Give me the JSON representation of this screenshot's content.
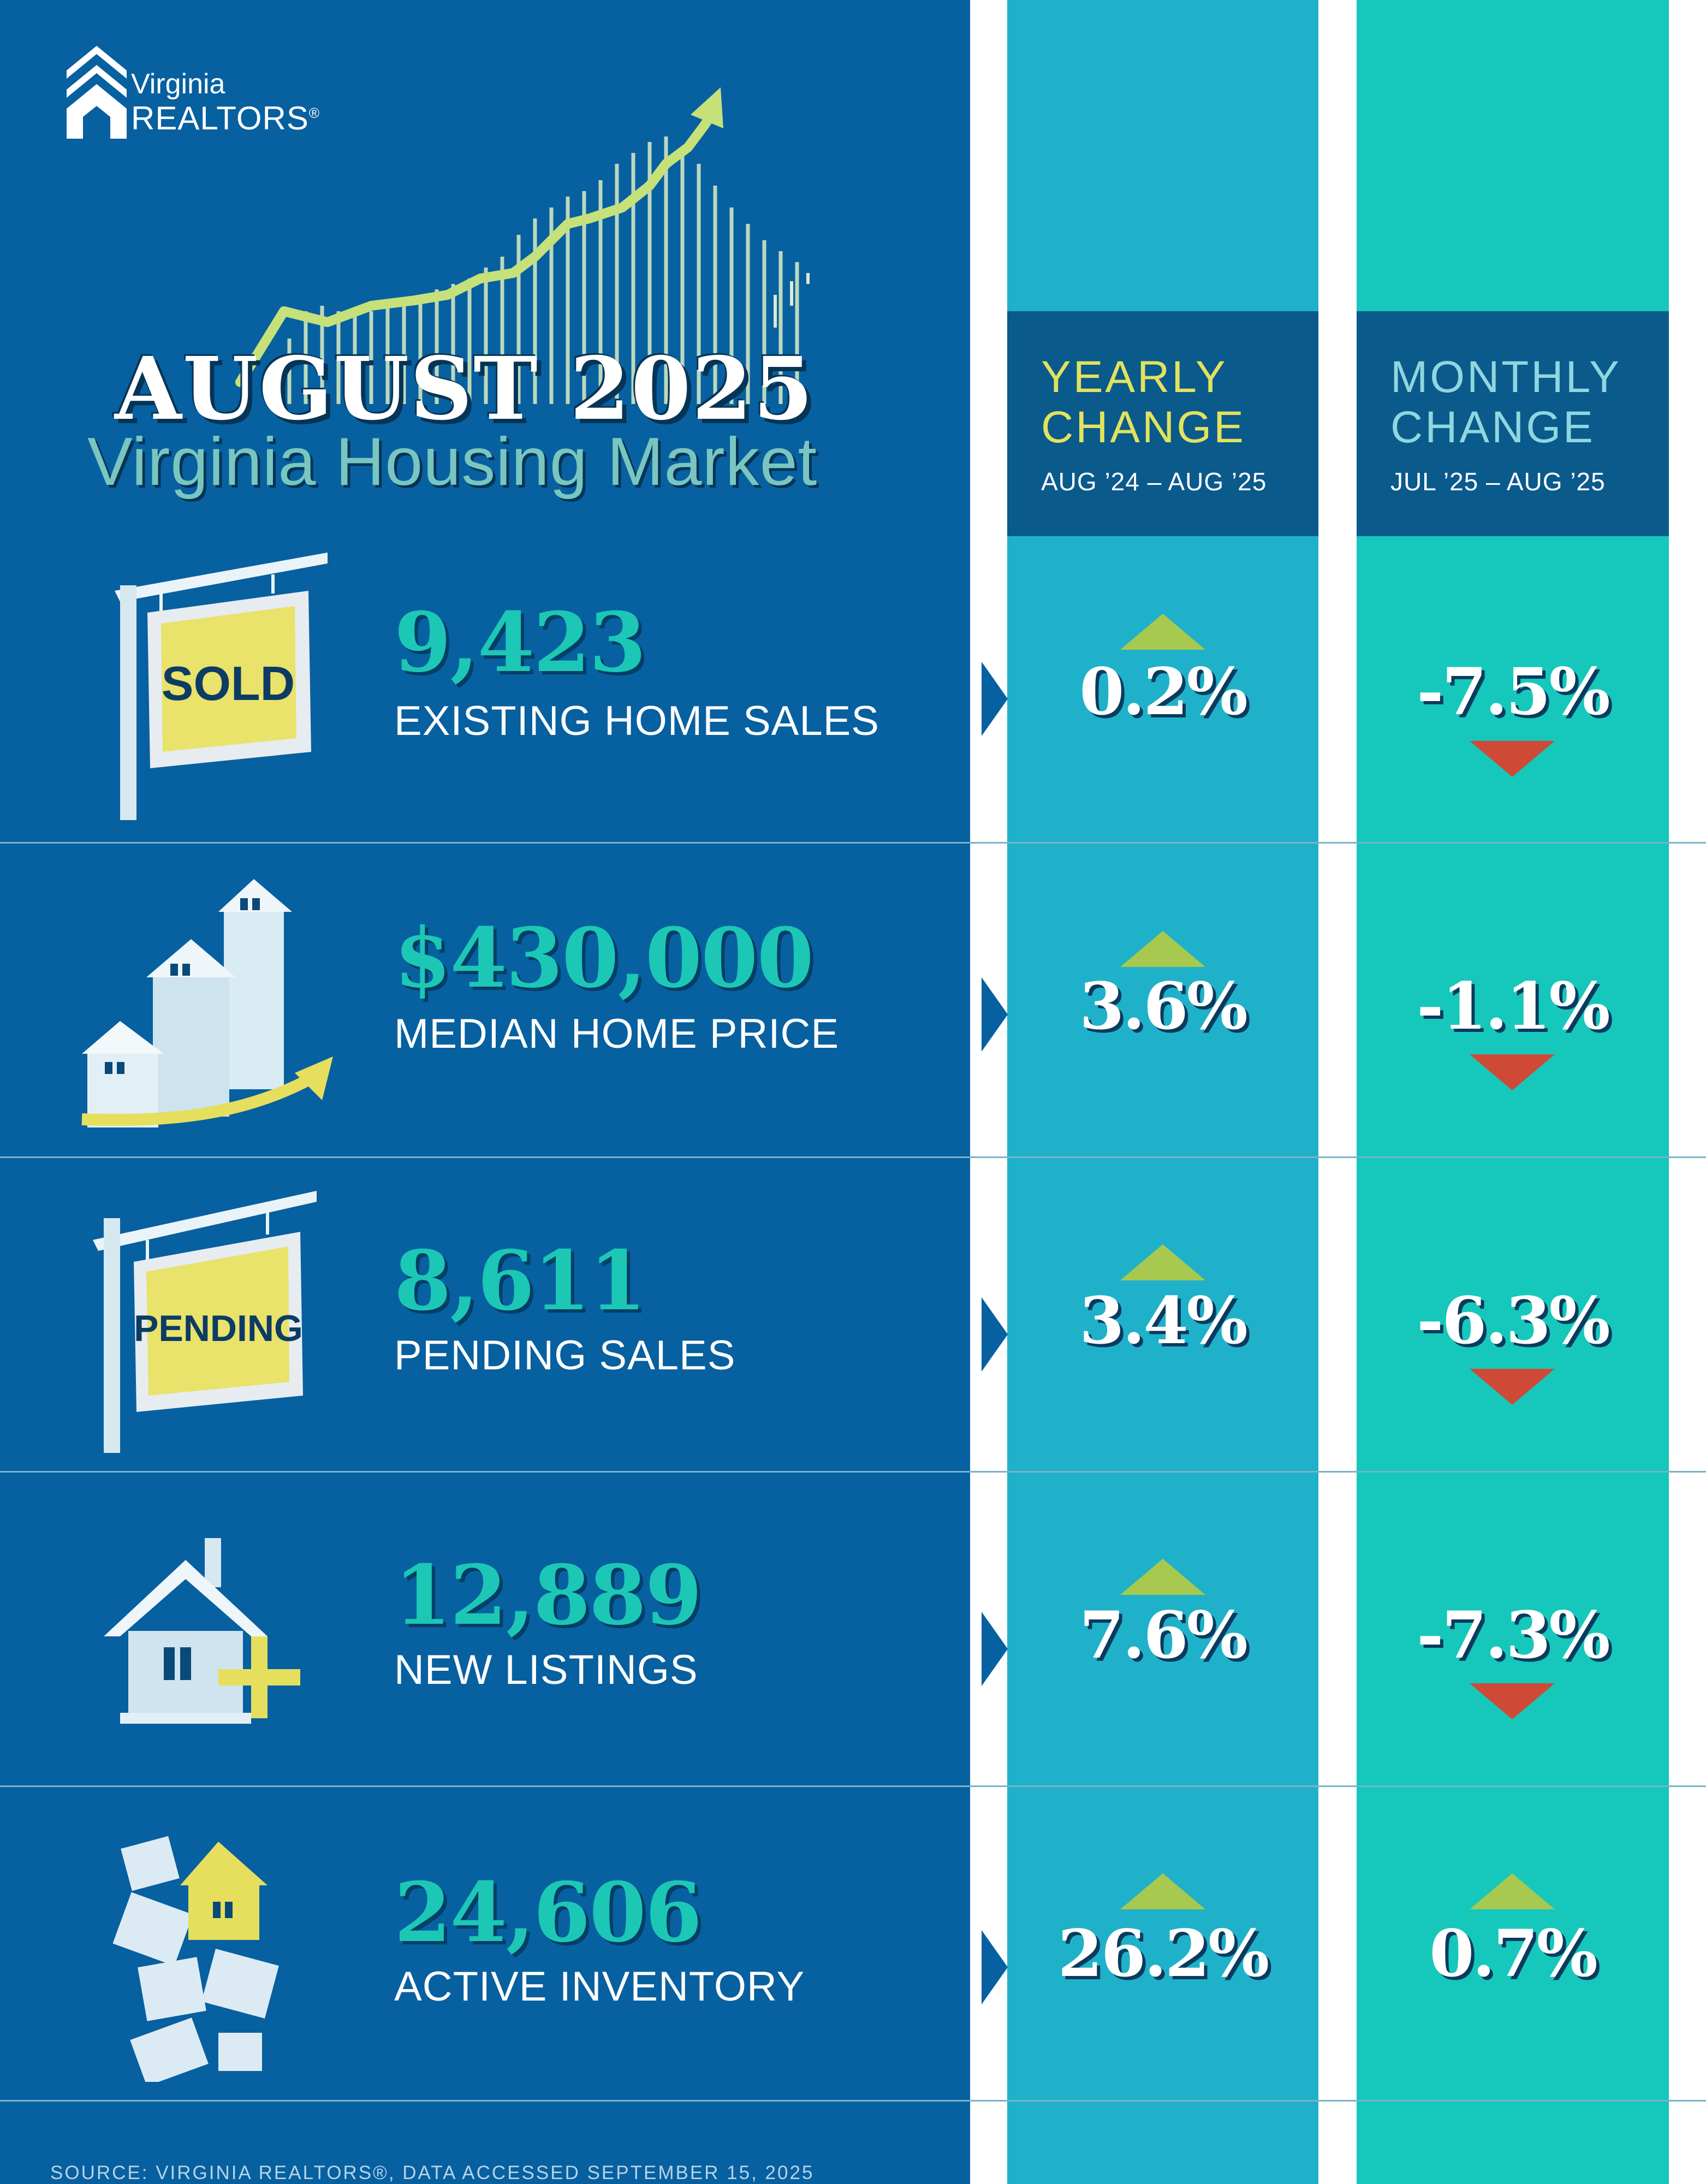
{
  "logo": {
    "line1": "Virginia",
    "line2": "REALTORS",
    "mark": "®"
  },
  "title": {
    "main": "AUGUST 2025",
    "sub": "Virginia Housing Market"
  },
  "columns": {
    "yearly": {
      "title_line1": "YEARLY",
      "title_line2": "CHANGE",
      "range": "AUG ’24 – AUG ’25",
      "title_color": "#e2e25c"
    },
    "monthly": {
      "title_line1": "MONTHLY",
      "title_line2": "CHANGE",
      "range": "JUL ’25 – AUG ’25",
      "title_color": "#7fd3dc"
    }
  },
  "metrics": [
    {
      "value": "9,423",
      "label": "EXISTING HOME SALES",
      "icon": "sold-sign-icon",
      "sign_text": "SOLD",
      "yearly": "0.2%",
      "yearly_dir": "up",
      "monthly": "-7.5%",
      "monthly_dir": "down"
    },
    {
      "value": "$430,000",
      "label": "MEDIAN HOME PRICE",
      "icon": "rising-houses-icon",
      "yearly": "3.6%",
      "yearly_dir": "up",
      "monthly": "-1.1%",
      "monthly_dir": "down"
    },
    {
      "value": "8,611",
      "label": "PENDING SALES",
      "icon": "pending-sign-icon",
      "sign_text": "PENDING",
      "yearly": "3.4%",
      "yearly_dir": "up",
      "monthly": "-6.3%",
      "monthly_dir": "down"
    },
    {
      "value": "12,889",
      "label": "NEW LISTINGS",
      "icon": "house-plus-icon",
      "yearly": "7.6%",
      "yearly_dir": "up",
      "monthly": "-7.3%",
      "monthly_dir": "down"
    },
    {
      "value": "24,606",
      "label": "ACTIVE INVENTORY",
      "icon": "house-pile-icon",
      "yearly": "26.2%",
      "yearly_dir": "up",
      "monthly": "0.7%",
      "monthly_dir": "up"
    }
  ],
  "colors": {
    "navy": "#0760a0",
    "teal_col": "#1fb1c9",
    "mint_col": "#15c8bb",
    "up": "#a7c94f",
    "down": "#cf4a36",
    "accent_value": "#1cc7b5"
  },
  "source": "SOURCE: VIRGINIA REALTORS®, DATA ACCESSED SEPTEMBER 15, 2025"
}
